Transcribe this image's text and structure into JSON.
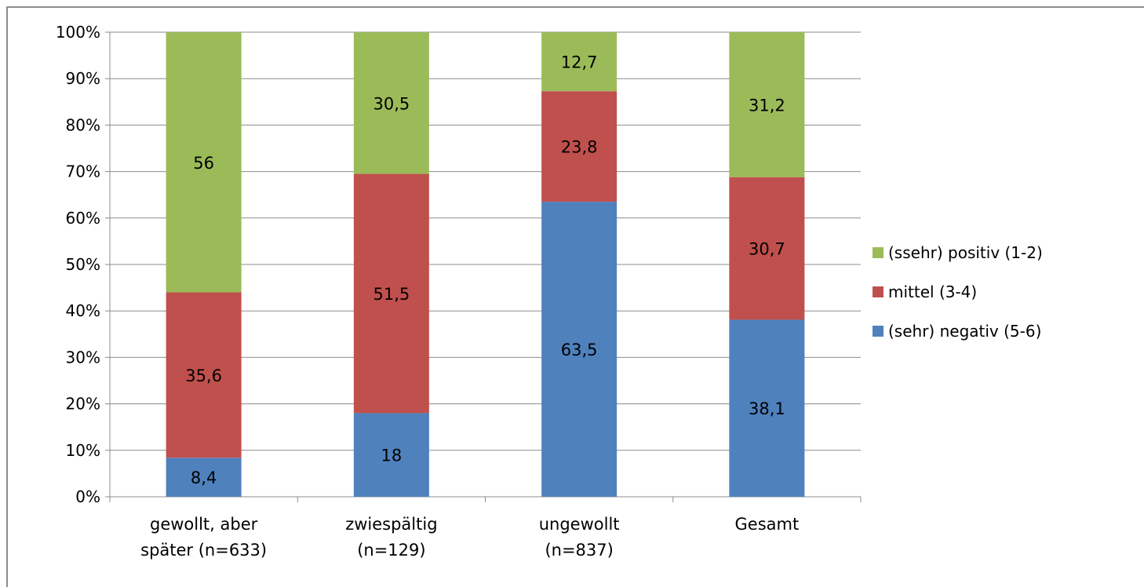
{
  "chart_data": {
    "type": "bar",
    "stacked": true,
    "percent_stacked": true,
    "title": "",
    "xlabel": "",
    "ylabel": "",
    "ylim": [
      0,
      100
    ],
    "yticks": [
      "0%",
      "10%",
      "20%",
      "30%",
      "40%",
      "50%",
      "60%",
      "70%",
      "80%",
      "90%",
      "100%"
    ],
    "categories": [
      [
        "gewollt, aber",
        "später (n=633)"
      ],
      [
        "zwiespältig",
        "(n=129)"
      ],
      [
        "ungewollt",
        "(n=837)"
      ],
      [
        "Gesamt"
      ]
    ],
    "series": [
      {
        "name": "(sehr) negativ (5-6)",
        "color": "#4f81bd",
        "values": [
          8.4,
          18,
          63.5,
          38.1
        ],
        "labels": [
          "8,4",
          "18",
          "63,5",
          "38,1"
        ]
      },
      {
        "name": "mittel (3-4)",
        "color": "#c0504d",
        "values": [
          35.6,
          51.5,
          23.8,
          30.7
        ],
        "labels": [
          "35,6",
          "51,5",
          "23,8",
          "30,7"
        ]
      },
      {
        "name": "(ssehr) positiv (1-2)",
        "color": "#9bbb59",
        "values": [
          56,
          30.5,
          12.7,
          31.2
        ],
        "labels": [
          "56",
          "30,5",
          "12,7",
          "31,2"
        ]
      }
    ],
    "legend": {
      "position": "right",
      "order": [
        "(ssehr) positiv (1-2)",
        "mittel (3-4)",
        "(sehr) negativ (5-6)"
      ]
    },
    "grid": true
  }
}
